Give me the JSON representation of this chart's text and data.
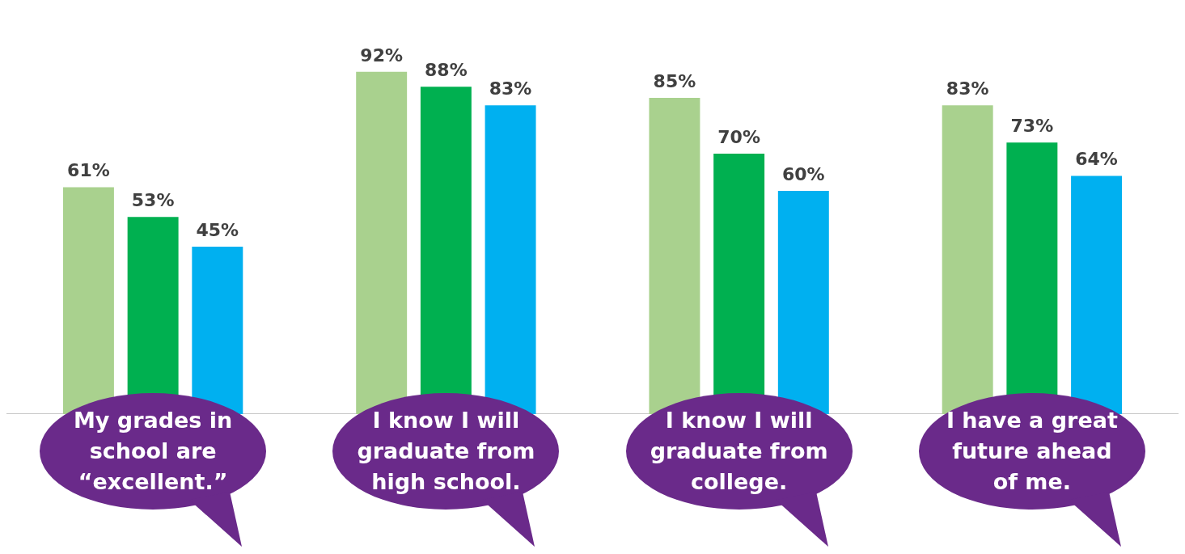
{
  "chart_data": {
    "type": "bar",
    "categories": [
      "My grades in school are “excellent.”",
      "I know I will graduate from high school.",
      "I know I will graduate from college.",
      "I have a great future ahead of me."
    ],
    "series": [
      {
        "color": "#a9d18e",
        "values": [
          61,
          92,
          85,
          83
        ],
        "value_labels": [
          "61%",
          "92%",
          "85%",
          "83%"
        ]
      },
      {
        "color": "#00b050",
        "values": [
          53,
          88,
          70,
          73
        ],
        "value_labels": [
          "53%",
          "88%",
          "70%",
          "73%"
        ]
      },
      {
        "color": "#00b0f0",
        "values": [
          45,
          83,
          60,
          64
        ],
        "value_labels": [
          "45%",
          "83%",
          "60%",
          "64%"
        ]
      }
    ],
    "grid": false,
    "legend": false
  }
}
